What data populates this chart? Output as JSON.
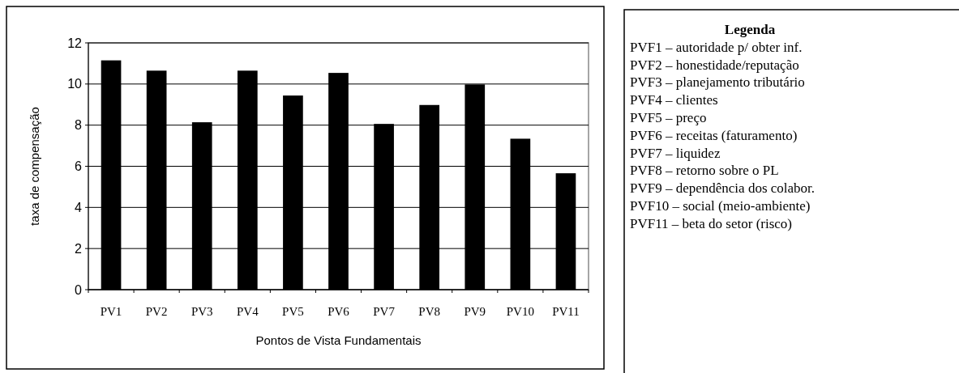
{
  "chart_data": {
    "type": "bar",
    "xlabel": "Pontos de Vista Fundamentais",
    "ylabel": "taxa de compensação",
    "categories": [
      "PV1",
      "PV2",
      "PV3",
      "PV4",
      "PV5",
      "PV6",
      "PV7",
      "PV8",
      "PV9",
      "PV10",
      "PV11"
    ],
    "values": [
      11.15,
      10.65,
      8.14,
      10.65,
      9.44,
      10.54,
      8.06,
      8.98,
      9.98,
      7.34,
      5.66
    ],
    "color": "#000000",
    "ylim": [
      0,
      12
    ],
    "yticks": [
      0,
      2,
      4,
      6,
      8,
      10,
      12
    ],
    "grid": "y",
    "annotations": [
      "Legenda",
      "PVF1 – autoridade p/ obter inf.",
      "PVF2 – honestidade/reputação",
      "PVF3 – planejamento tributário",
      "PVF4 – clientes",
      "PVF5 – preço",
      "PVF6 – receitas (faturamento)",
      "PVF7 – liquidez",
      "PVF8 – retorno sobre o PL",
      "PVF9 – dependência dos colabor.",
      "PVF10 – social (meio-ambiente)",
      "PVF11 – beta do setor (risco)"
    ]
  }
}
